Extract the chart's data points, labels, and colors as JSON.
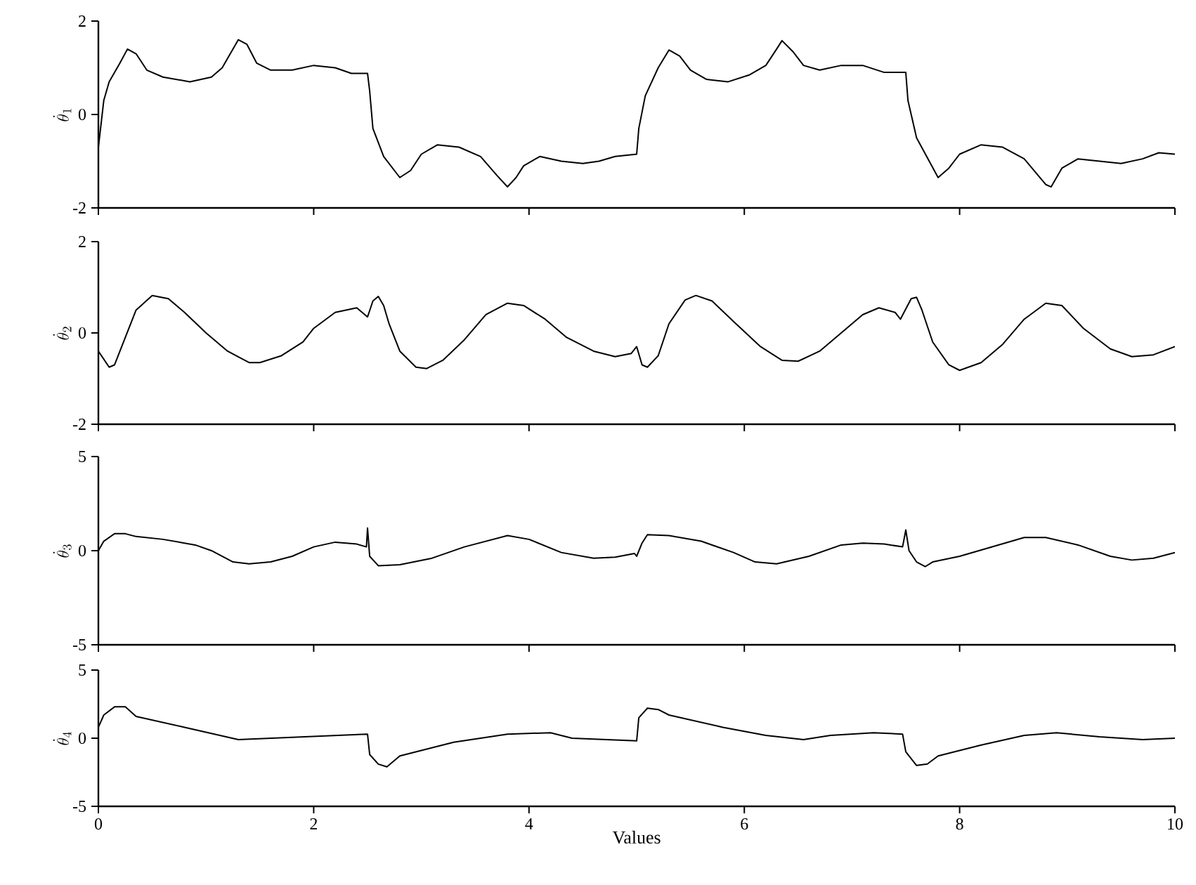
{
  "chart_data": [
    {
      "type": "line",
      "ylabel": "\\dot{\\theta}_{1}",
      "xlim": [
        0,
        10
      ],
      "xticks": [
        0,
        2,
        4,
        6,
        8,
        10
      ],
      "ylim": [
        -2,
        2
      ],
      "yticks": [
        -2,
        0,
        2
      ],
      "tick_labels": "y",
      "series": [
        {
          "color": "#000000",
          "x": [
            0,
            0.05,
            0.1,
            0.2,
            0.27,
            0.35,
            0.45,
            0.6,
            0.85,
            1.05,
            1.15,
            1.3,
            1.38,
            1.47,
            1.6,
            1.8,
            2.0,
            2.2,
            2.35,
            2.5,
            2.52,
            2.55,
            2.65,
            2.8,
            2.9,
            3.0,
            3.15,
            3.35,
            3.55,
            3.7,
            3.8,
            3.88,
            3.95,
            4.1,
            4.3,
            4.5,
            4.65,
            4.8,
            5.0,
            5.02,
            5.08,
            5.2,
            5.3,
            5.4,
            5.5,
            5.65,
            5.85,
            6.05,
            6.2,
            6.3,
            6.35,
            6.45,
            6.55,
            6.7,
            6.9,
            7.1,
            7.3,
            7.5,
            7.52,
            7.6,
            7.8,
            7.9,
            8.0,
            8.2,
            8.4,
            8.6,
            8.8,
            8.85,
            8.95,
            9.1,
            9.3,
            9.5,
            9.7,
            9.85,
            10
          ],
          "values": [
            -0.7,
            0.3,
            0.7,
            1.1,
            1.4,
            1.3,
            0.95,
            0.8,
            0.7,
            0.8,
            1.0,
            1.6,
            1.5,
            1.1,
            0.95,
            0.95,
            1.05,
            1.0,
            0.88,
            0.88,
            0.5,
            -0.3,
            -0.9,
            -1.35,
            -1.2,
            -0.85,
            -0.65,
            -0.7,
            -0.9,
            -1.3,
            -1.55,
            -1.35,
            -1.1,
            -0.9,
            -1.0,
            -1.05,
            -1.0,
            -0.9,
            -0.85,
            -0.3,
            0.4,
            1.0,
            1.38,
            1.25,
            0.95,
            0.75,
            0.7,
            0.85,
            1.05,
            1.4,
            1.58,
            1.35,
            1.05,
            0.95,
            1.05,
            1.05,
            0.9,
            0.9,
            0.3,
            -0.5,
            -1.35,
            -1.15,
            -0.85,
            -0.65,
            -0.7,
            -0.95,
            -1.5,
            -1.55,
            -1.15,
            -0.95,
            -1.0,
            -1.05,
            -0.95,
            -0.82,
            -0.85
          ]
        }
      ]
    },
    {
      "type": "line",
      "ylabel": "\\dot{\\theta}_{2}",
      "xlim": [
        0,
        10
      ],
      "xticks": [
        0,
        2,
        4,
        6,
        8,
        10
      ],
      "ylim": [
        -2,
        2
      ],
      "yticks": [
        -2,
        0,
        2
      ],
      "tick_labels": "y",
      "series": [
        {
          "color": "#000000",
          "x": [
            0,
            0.1,
            0.15,
            0.25,
            0.35,
            0.5,
            0.65,
            0.8,
            1.0,
            1.2,
            1.4,
            1.5,
            1.7,
            1.9,
            2.0,
            2.2,
            2.4,
            2.45,
            2.5,
            2.55,
            2.6,
            2.65,
            2.7,
            2.8,
            2.95,
            3.05,
            3.2,
            3.4,
            3.6,
            3.8,
            3.95,
            4.15,
            4.35,
            4.6,
            4.8,
            4.95,
            5.0,
            5.05,
            5.1,
            5.2,
            5.3,
            5.45,
            5.55,
            5.7,
            5.9,
            6.15,
            6.35,
            6.5,
            6.7,
            6.9,
            7.1,
            7.25,
            7.4,
            7.45,
            7.55,
            7.6,
            7.65,
            7.75,
            7.9,
            8.0,
            8.2,
            8.4,
            8.6,
            8.8,
            8.95,
            9.15,
            9.4,
            9.6,
            9.8,
            10
          ],
          "values": [
            -0.4,
            -0.75,
            -0.7,
            -0.1,
            0.5,
            0.82,
            0.75,
            0.45,
            0,
            -0.4,
            -0.65,
            -0.65,
            -0.5,
            -0.2,
            0.1,
            0.45,
            0.55,
            0.45,
            0.35,
            0.7,
            0.8,
            0.6,
            0.2,
            -0.4,
            -0.75,
            -0.78,
            -0.6,
            -0.15,
            0.4,
            0.65,
            0.6,
            0.3,
            -0.1,
            -0.4,
            -0.52,
            -0.45,
            -0.3,
            -0.7,
            -0.75,
            -0.5,
            0.2,
            0.72,
            0.82,
            0.7,
            0.25,
            -0.3,
            -0.6,
            -0.62,
            -0.4,
            0,
            0.4,
            0.55,
            0.45,
            0.3,
            0.75,
            0.78,
            0.5,
            -0.2,
            -0.7,
            -0.82,
            -0.65,
            -0.25,
            0.3,
            0.65,
            0.6,
            0.1,
            -0.35,
            -0.52,
            -0.48,
            -0.3
          ]
        }
      ]
    },
    {
      "type": "line",
      "ylabel": "\\dot{\\theta}_{3}",
      "xlim": [
        0,
        10
      ],
      "xticks": [
        0,
        2,
        4,
        6,
        8,
        10
      ],
      "ylim": [
        -5,
        5
      ],
      "yticks": [
        -5,
        0,
        5
      ],
      "tick_labels": "y",
      "series": [
        {
          "color": "#000000",
          "x": [
            0,
            0.05,
            0.15,
            0.25,
            0.35,
            0.6,
            0.9,
            1.05,
            1.25,
            1.4,
            1.6,
            1.8,
            2.0,
            2.2,
            2.4,
            2.49,
            2.5,
            2.52,
            2.6,
            2.8,
            3.1,
            3.4,
            3.8,
            4.0,
            4.3,
            4.6,
            4.8,
            4.98,
            5.0,
            5.05,
            5.1,
            5.3,
            5.6,
            5.9,
            6.1,
            6.3,
            6.6,
            6.9,
            7.1,
            7.3,
            7.47,
            7.5,
            7.53,
            7.6,
            7.68,
            7.75,
            8.0,
            8.3,
            8.6,
            8.8,
            9.1,
            9.4,
            9.6,
            9.8,
            10
          ],
          "values": [
            0,
            0.5,
            0.9,
            0.9,
            0.75,
            0.6,
            0.3,
            0,
            -0.6,
            -0.7,
            -0.6,
            -0.3,
            0.2,
            0.45,
            0.35,
            0.2,
            1.2,
            -0.3,
            -0.8,
            -0.75,
            -0.4,
            0.2,
            0.8,
            0.6,
            -0.1,
            -0.4,
            -0.35,
            -0.15,
            -0.3,
            0.4,
            0.85,
            0.8,
            0.5,
            -0.1,
            -0.6,
            -0.7,
            -0.3,
            0.3,
            0.4,
            0.35,
            0.2,
            1.1,
            0,
            -0.6,
            -0.85,
            -0.6,
            -0.3,
            0.2,
            0.7,
            0.7,
            0.3,
            -0.3,
            -0.5,
            -0.4,
            -0.1
          ]
        }
      ]
    },
    {
      "type": "line",
      "ylabel": "\\dot{\\theta}_{4}",
      "xlabel": "Values",
      "xlim": [
        0,
        10
      ],
      "xticks": [
        0,
        2,
        4,
        6,
        8,
        10
      ],
      "ylim": [
        -5,
        5
      ],
      "yticks": [
        -5,
        0,
        5
      ],
      "series": [
        {
          "color": "#000000",
          "x": [
            0,
            0.05,
            0.15,
            0.25,
            0.35,
            0.8,
            1.3,
            2.5,
            2.52,
            2.6,
            2.68,
            2.8,
            3.3,
            3.8,
            4.2,
            4.4,
            5.0,
            5.02,
            5.1,
            5.2,
            5.3,
            5.8,
            6.2,
            6.55,
            6.8,
            7.2,
            7.47,
            7.5,
            7.6,
            7.7,
            7.8,
            8.2,
            8.6,
            8.9,
            9.3,
            9.7,
            10
          ],
          "values": [
            0.8,
            1.7,
            2.3,
            2.3,
            1.6,
            0.8,
            -0.1,
            0.3,
            -1.2,
            -1.9,
            -2.1,
            -1.3,
            -0.3,
            0.3,
            0.4,
            0.0,
            -0.2,
            1.5,
            2.2,
            2.1,
            1.7,
            0.8,
            0.2,
            -0.1,
            0.2,
            0.4,
            0.3,
            -1.0,
            -2.0,
            -1.9,
            -1.3,
            -0.5,
            0.2,
            0.4,
            0.1,
            -0.1,
            0
          ]
        }
      ]
    }
  ]
}
